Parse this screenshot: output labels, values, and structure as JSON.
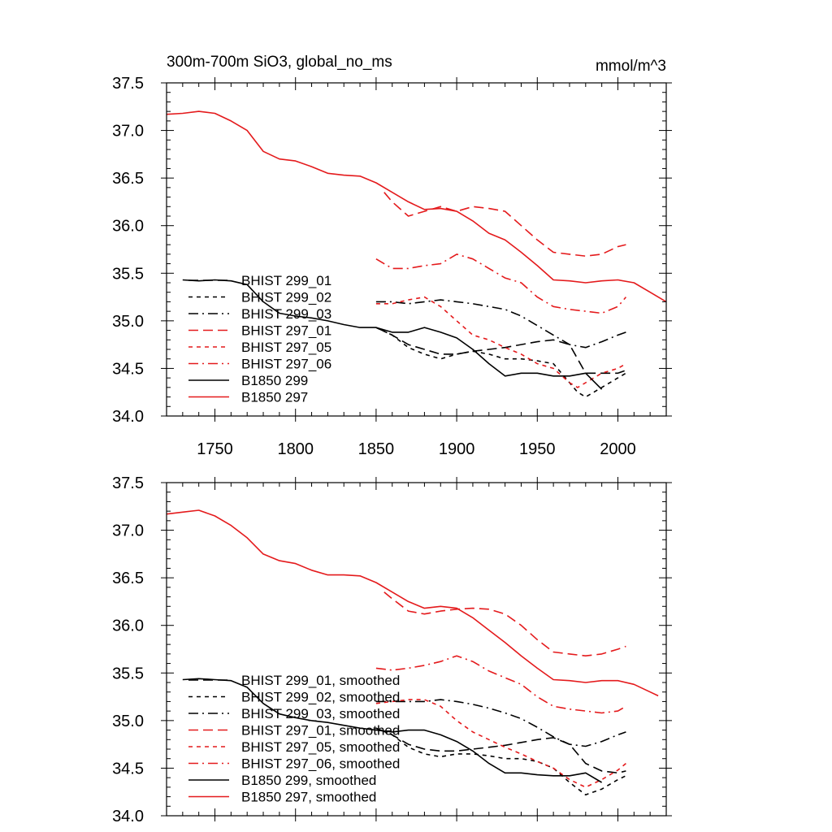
{
  "colors": {
    "red": "#e41a1c",
    "black": "#000000",
    "background": "#ffffff"
  },
  "chart_data": [
    {
      "type": "line",
      "title": "300m-700m SiO3, global_no_ms",
      "units": "mmol/m^3",
      "xlim": [
        1720,
        2030
      ],
      "ylim": [
        34.0,
        37.5
      ],
      "xticks": [
        "1750",
        "1800",
        "1850",
        "1900",
        "1950",
        "2000"
      ],
      "yticks": [
        "34.0",
        "34.5",
        "35.0",
        "35.5",
        "36.0",
        "36.5",
        "37.0",
        "37.5"
      ],
      "legend_position": "lower-left",
      "series": [
        {
          "name": "BHIST 299_01",
          "color": "#000000",
          "dash": "long-dash",
          "x": [
            1850,
            1860,
            1870,
            1880,
            1890,
            1900,
            1910,
            1920,
            1930,
            1940,
            1950,
            1960,
            1970,
            1980,
            1990,
            2000,
            2005
          ],
          "y": [
            34.93,
            34.85,
            34.75,
            34.7,
            34.65,
            34.65,
            34.68,
            34.7,
            34.72,
            34.75,
            34.78,
            34.8,
            34.75,
            34.45,
            34.45,
            34.45,
            34.48
          ]
        },
        {
          "name": "BHIST 299_02",
          "color": "#000000",
          "dash": "short-dash",
          "x": [
            1850,
            1860,
            1870,
            1880,
            1890,
            1900,
            1910,
            1920,
            1930,
            1940,
            1950,
            1960,
            1970,
            1975,
            1980,
            1990,
            2000,
            2005
          ],
          "y": [
            34.93,
            34.85,
            34.72,
            34.65,
            34.6,
            34.65,
            34.68,
            34.65,
            34.6,
            34.6,
            34.58,
            34.55,
            34.35,
            34.25,
            34.2,
            34.3,
            34.4,
            34.45
          ]
        },
        {
          "name": "BHIST 299_03",
          "color": "#000000",
          "dash": "dash-dot",
          "x": [
            1850,
            1860,
            1870,
            1880,
            1890,
            1900,
            1910,
            1920,
            1930,
            1940,
            1950,
            1960,
            1970,
            1980,
            1990,
            2000,
            2005
          ],
          "y": [
            35.2,
            35.2,
            35.18,
            35.2,
            35.22,
            35.2,
            35.18,
            35.15,
            35.12,
            35.05,
            34.95,
            34.85,
            34.75,
            34.72,
            34.78,
            34.85,
            34.88
          ]
        },
        {
          "name": "BHIST 297_01",
          "color": "#e41a1c",
          "dash": "long-dash",
          "x": [
            1855,
            1860,
            1870,
            1880,
            1890,
            1900,
            1910,
            1920,
            1930,
            1940,
            1950,
            1960,
            1970,
            1980,
            1990,
            2000,
            2005
          ],
          "y": [
            36.35,
            36.25,
            36.1,
            36.15,
            36.2,
            36.15,
            36.2,
            36.18,
            36.15,
            36.0,
            35.85,
            35.72,
            35.7,
            35.68,
            35.7,
            35.78,
            35.8
          ]
        },
        {
          "name": "BHIST 297_05",
          "color": "#e41a1c",
          "dash": "short-dash",
          "x": [
            1850,
            1860,
            1870,
            1880,
            1890,
            1900,
            1910,
            1920,
            1930,
            1940,
            1950,
            1960,
            1970,
            1975,
            1980,
            1990,
            2000,
            2005
          ],
          "y": [
            35.18,
            35.18,
            35.22,
            35.25,
            35.15,
            35.0,
            34.85,
            34.8,
            34.72,
            34.65,
            34.55,
            34.5,
            34.35,
            34.3,
            34.35,
            34.45,
            34.5,
            34.55
          ]
        },
        {
          "name": "BHIST 297_06",
          "color": "#e41a1c",
          "dash": "dash-dot",
          "x": [
            1850,
            1860,
            1870,
            1880,
            1890,
            1900,
            1910,
            1920,
            1930,
            1940,
            1950,
            1960,
            1970,
            1980,
            1990,
            2000,
            2005
          ],
          "y": [
            35.65,
            35.55,
            35.55,
            35.58,
            35.6,
            35.7,
            35.65,
            35.55,
            35.45,
            35.4,
            35.25,
            35.15,
            35.12,
            35.1,
            35.08,
            35.15,
            35.25
          ]
        },
        {
          "name": "B1850 299",
          "color": "#000000",
          "dash": "solid",
          "x": [
            1730,
            1740,
            1750,
            1760,
            1770,
            1780,
            1790,
            1800,
            1810,
            1820,
            1830,
            1840,
            1850,
            1860,
            1870,
            1880,
            1890,
            1900,
            1910,
            1920,
            1930,
            1940,
            1950,
            1960,
            1970,
            1980,
            1990
          ],
          "y": [
            35.43,
            35.42,
            35.43,
            35.42,
            35.38,
            35.2,
            35.08,
            35.05,
            35.03,
            35.0,
            34.96,
            34.93,
            34.93,
            34.88,
            34.88,
            34.93,
            34.88,
            34.82,
            34.7,
            34.55,
            34.42,
            34.45,
            34.45,
            34.42,
            34.42,
            34.45,
            34.28
          ]
        },
        {
          "name": "B1850 297",
          "color": "#e41a1c",
          "dash": "solid",
          "x": [
            1720,
            1730,
            1740,
            1750,
            1760,
            1770,
            1780,
            1790,
            1800,
            1810,
            1820,
            1830,
            1840,
            1850,
            1860,
            1870,
            1880,
            1890,
            1900,
            1910,
            1920,
            1930,
            1940,
            1950,
            1960,
            1970,
            1980,
            1990,
            2000,
            2010,
            2020,
            2030
          ],
          "y": [
            37.17,
            37.18,
            37.2,
            37.18,
            37.1,
            37.0,
            36.78,
            36.7,
            36.68,
            36.62,
            36.55,
            36.53,
            36.52,
            36.45,
            36.35,
            36.25,
            36.17,
            36.18,
            36.15,
            36.05,
            35.92,
            35.85,
            35.72,
            35.58,
            35.43,
            35.42,
            35.4,
            35.42,
            35.43,
            35.4,
            35.3,
            35.2
          ]
        }
      ]
    },
    {
      "type": "line",
      "xlim": [
        1720,
        2030
      ],
      "ylim": [
        34.0,
        37.5
      ],
      "yticks": [
        "34.0",
        "34.5",
        "35.0",
        "35.5",
        "36.0",
        "36.5",
        "37.0",
        "37.5"
      ],
      "legend_position": "lower-left",
      "series": [
        {
          "name": "BHIST 299_01, smoothed",
          "color": "#000000",
          "dash": "long-dash",
          "x": [
            1850,
            1860,
            1870,
            1880,
            1890,
            1900,
            1910,
            1920,
            1930,
            1940,
            1950,
            1960,
            1970,
            1980,
            1990,
            2000,
            2005
          ],
          "y": [
            34.92,
            34.85,
            34.75,
            34.7,
            34.68,
            34.68,
            34.7,
            34.72,
            34.74,
            34.77,
            34.8,
            34.82,
            34.75,
            34.55,
            34.47,
            34.45,
            34.47
          ]
        },
        {
          "name": "BHIST 299_02, smoothed",
          "color": "#000000",
          "dash": "short-dash",
          "x": [
            1850,
            1860,
            1870,
            1880,
            1890,
            1900,
            1910,
            1920,
            1930,
            1940,
            1950,
            1960,
            1970,
            1980,
            1990,
            2000,
            2005
          ],
          "y": [
            34.92,
            34.85,
            34.72,
            34.65,
            34.62,
            34.65,
            34.65,
            34.63,
            34.6,
            34.6,
            34.57,
            34.5,
            34.35,
            34.22,
            34.28,
            34.38,
            34.42
          ]
        },
        {
          "name": "BHIST 299_03, smoothed",
          "color": "#000000",
          "dash": "dash-dot",
          "x": [
            1850,
            1860,
            1870,
            1880,
            1890,
            1900,
            1910,
            1920,
            1930,
            1940,
            1950,
            1960,
            1970,
            1980,
            1990,
            2000,
            2005
          ],
          "y": [
            35.2,
            35.2,
            35.2,
            35.2,
            35.22,
            35.2,
            35.17,
            35.13,
            35.08,
            35.02,
            34.93,
            34.83,
            34.75,
            34.73,
            34.78,
            34.85,
            34.88
          ]
        },
        {
          "name": "BHIST 297_01, smoothed",
          "color": "#e41a1c",
          "dash": "long-dash",
          "x": [
            1855,
            1860,
            1870,
            1880,
            1890,
            1900,
            1910,
            1920,
            1930,
            1940,
            1950,
            1960,
            1970,
            1980,
            1990,
            2000,
            2005
          ],
          "y": [
            36.35,
            36.28,
            36.15,
            36.12,
            36.15,
            36.17,
            36.18,
            36.17,
            36.12,
            36.0,
            35.85,
            35.72,
            35.7,
            35.68,
            35.7,
            35.75,
            35.78
          ]
        },
        {
          "name": "BHIST 297_05, smoothed",
          "color": "#e41a1c",
          "dash": "short-dash",
          "x": [
            1850,
            1860,
            1870,
            1880,
            1890,
            1900,
            1910,
            1920,
            1930,
            1940,
            1950,
            1960,
            1970,
            1980,
            1990,
            2000,
            2005
          ],
          "y": [
            35.18,
            35.2,
            35.22,
            35.22,
            35.15,
            35.0,
            34.88,
            34.8,
            34.72,
            34.65,
            34.57,
            34.5,
            34.38,
            34.3,
            34.38,
            34.48,
            34.55
          ]
        },
        {
          "name": "BHIST 297_06, smoothed",
          "color": "#e41a1c",
          "dash": "dash-dot",
          "x": [
            1850,
            1860,
            1870,
            1880,
            1890,
            1900,
            1910,
            1920,
            1930,
            1940,
            1950,
            1960,
            1970,
            1980,
            1990,
            2000,
            2005
          ],
          "y": [
            35.55,
            35.53,
            35.55,
            35.58,
            35.62,
            35.68,
            35.62,
            35.52,
            35.45,
            35.38,
            35.25,
            35.15,
            35.12,
            35.1,
            35.08,
            35.1,
            35.15
          ]
        },
        {
          "name": "B1850 299, smoothed",
          "color": "#000000",
          "dash": "solid",
          "x": [
            1730,
            1740,
            1750,
            1760,
            1770,
            1780,
            1790,
            1800,
            1810,
            1820,
            1830,
            1840,
            1850,
            1860,
            1870,
            1880,
            1890,
            1900,
            1910,
            1920,
            1930,
            1940,
            1950,
            1960,
            1970,
            1980,
            1990
          ],
          "y": [
            35.43,
            35.44,
            35.43,
            35.42,
            35.35,
            35.18,
            35.07,
            35.03,
            35.0,
            34.98,
            34.95,
            34.92,
            34.9,
            34.88,
            34.9,
            34.9,
            34.85,
            34.78,
            34.68,
            34.55,
            34.45,
            34.45,
            34.43,
            34.42,
            34.42,
            34.45,
            34.35
          ]
        },
        {
          "name": "B1850 297, smoothed",
          "color": "#e41a1c",
          "dash": "solid",
          "x": [
            1720,
            1730,
            1740,
            1750,
            1760,
            1770,
            1780,
            1790,
            1800,
            1810,
            1820,
            1830,
            1840,
            1850,
            1860,
            1870,
            1880,
            1890,
            1900,
            1910,
            1920,
            1930,
            1940,
            1950,
            1960,
            1970,
            1980,
            1990,
            2000,
            2010,
            2020,
            2025
          ],
          "y": [
            37.17,
            37.19,
            37.21,
            37.15,
            37.05,
            36.92,
            36.75,
            36.68,
            36.65,
            36.58,
            36.53,
            36.53,
            36.52,
            36.45,
            36.35,
            36.25,
            36.18,
            36.2,
            36.18,
            36.08,
            35.95,
            35.82,
            35.68,
            35.55,
            35.43,
            35.42,
            35.4,
            35.42,
            35.42,
            35.38,
            35.3,
            35.26
          ]
        }
      ]
    }
  ]
}
